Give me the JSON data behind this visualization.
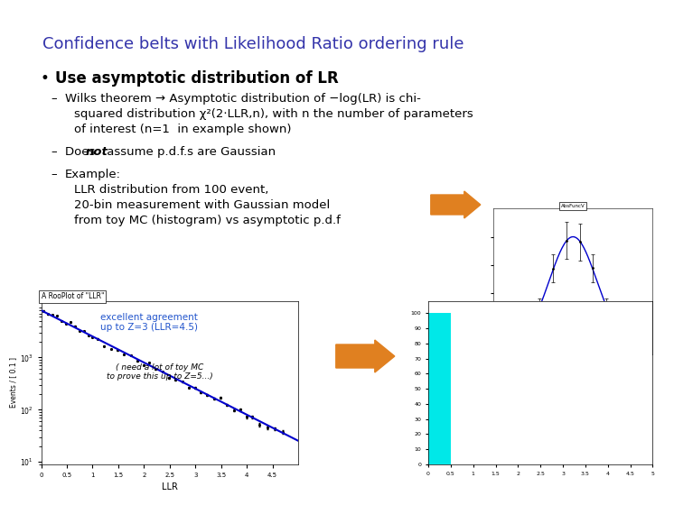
{
  "title": "Confidence belts with Likelihood Ratio ordering rule",
  "title_color": "#3333aa",
  "title_fontsize": 13,
  "bg_color": "#ffffff",
  "bullet1": "Use asymptotic distribution of LR",
  "sub1_line1": "Wilks theorem → Asymptotic distribution of −log(LR) is chi-",
  "sub1_line2": "squared distribution χ²(2⋅LLR,n), with n the number of parameters",
  "sub1_line3": "of interest (n=1  in example shown)",
  "sub2_pre": "Does ",
  "sub2_bold": "not",
  "sub2_post": " assume p.d.f.s are Gaussian",
  "sub3_line1": "Example:",
  "sub3_line2": "LLR distribution from 100 event,",
  "sub3_line3": "20-bin measurement with Gaussian model",
  "sub3_line4": "from toy MC (histogram) vs asymptotic p.d.f",
  "annotation1": "excellent agreement\nup to Z=3 (LLR=4.5)",
  "annotation2": "( need a lot of toy MC\nto prove this up to Z=5...)",
  "left_plot_title": "A RooPlot of \"LLR\"",
  "left_xlabel": "LLR",
  "left_ylabel": "Events / [ 0.1 ]",
  "arrow_color": "#e08020",
  "cyan_color": "#00e8e8",
  "plot_bg": "#ffffff",
  "blue_line": "#0000cc",
  "small_plot_title": "AbsFuncV"
}
